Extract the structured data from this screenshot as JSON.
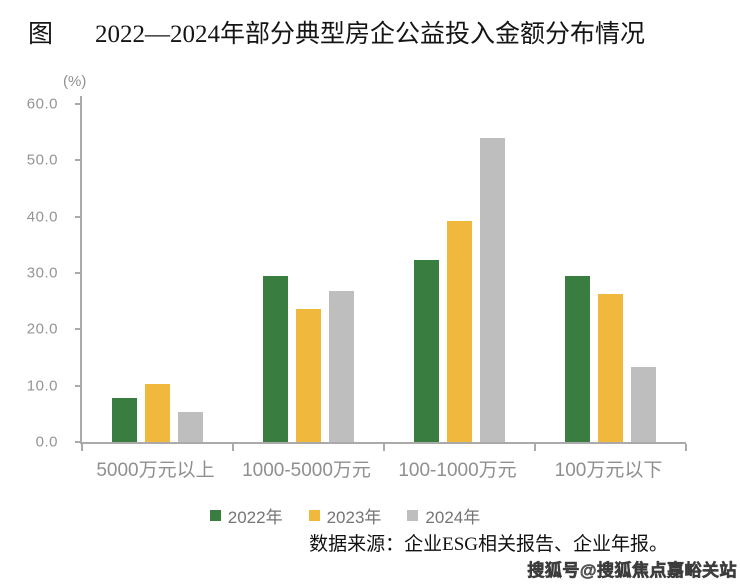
{
  "page": {
    "title_prefix": "图",
    "title": "2022—2024年部分典型房企公益投入金额分布情况",
    "source": "数据来源：企业ESG相关报告、企业年报。",
    "watermark": "搜狐号@搜狐焦点嘉峪关站"
  },
  "chart_data": {
    "type": "bar",
    "title": "2022—2024年部分典型房企公益投入金额分布情况",
    "unit_label": "(%)",
    "categories": [
      "5000万元以上",
      "1000-5000万元",
      "100-1000万元",
      "100万元以下"
    ],
    "series": [
      {
        "name": "2022年",
        "color": "#3A7D40",
        "values": [
          7.9,
          29.5,
          32.3,
          29.5
        ]
      },
      {
        "name": "2023年",
        "color": "#F0B83C",
        "values": [
          10.3,
          23.6,
          39.3,
          26.3
        ]
      },
      {
        "name": "2024年",
        "color": "#BEBEBE",
        "values": [
          5.3,
          26.8,
          53.9,
          13.4
        ]
      }
    ],
    "xlabel": "",
    "ylabel": "(%)",
    "ylim": [
      0,
      60
    ],
    "yticks": [
      "60.0",
      "50.0",
      "40.0",
      "30.0",
      "20.0",
      "10.0",
      "0.0"
    ],
    "grid": false,
    "legend_position": "bottom"
  }
}
